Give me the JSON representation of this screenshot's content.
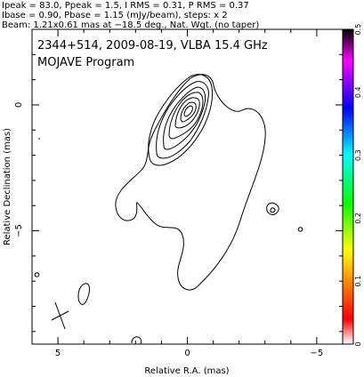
{
  "header": {
    "line1": "Ipeak = 83.0, Ppeak = 1.5, I RMS = 0.31, P RMS = 0.37",
    "line2": "Ibase = 0.90, Pbase = 1.15 (mJy/beam), steps: x 2",
    "line3": "Beam: 1.21x0.61 mas at −18.5 deg., Nat. Wgt. (no taper)"
  },
  "plot": {
    "title": "2344+514, 2009-08-19, VLBA 15.4 GHz",
    "subtitle": "MOJAVE Program"
  },
  "chart_data": {
    "type": "contour",
    "xlabel": "Relative R.A. (mas)",
    "ylabel": "Relative Declination (mas)",
    "xlim": [
      6,
      -6
    ],
    "ylim": [
      -9.5,
      3
    ],
    "x_ticks": [
      {
        "value": 5,
        "label": "5"
      },
      {
        "value": 0,
        "label": "0"
      },
      {
        "value": -5,
        "label": "−5"
      }
    ],
    "y_ticks": [
      {
        "value": 0,
        "label": "0"
      },
      {
        "value": -5,
        "label": "−5"
      }
    ],
    "peak_position": [
      0,
      0
    ],
    "contour_levels_mJy_per_beam": [
      0.9,
      1.8,
      3.6,
      7.2,
      14.4,
      28.8,
      57.6
    ],
    "beam": {
      "major_mas": 1.21,
      "minor_mas": 0.61,
      "pa_deg": -18.5,
      "center": [
        5,
        -7.8
      ]
    },
    "colorbar": {
      "min": 0,
      "max": 0.5,
      "ticks": [
        "0",
        "0.1",
        "0.2",
        "0.3",
        "0.4",
        "0.5"
      ],
      "colors": [
        "#ffffff",
        "#ff0000",
        "#ffff00",
        "#00ff00",
        "#00ffff",
        "#0000ff",
        "#ff00ff",
        "#000000"
      ]
    }
  }
}
